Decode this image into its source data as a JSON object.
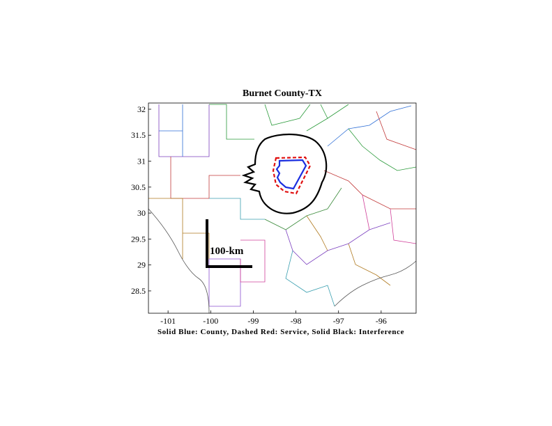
{
  "chart_data": {
    "type": "map",
    "title": "Burnet County-TX",
    "xlabel": "Solid Blue: County, Dashed Red: Service, Solid Black: Interference",
    "annotation": "100-km",
    "xlim": [
      -101.46,
      -95.18
    ],
    "xticks": [
      -101,
      -100,
      -99,
      -98,
      -97,
      -96
    ],
    "ylim": [
      28.07,
      32.12
    ],
    "yticks": [
      28.5,
      29,
      29.5,
      30,
      30.5,
      31,
      31.5,
      32
    ]
  }
}
